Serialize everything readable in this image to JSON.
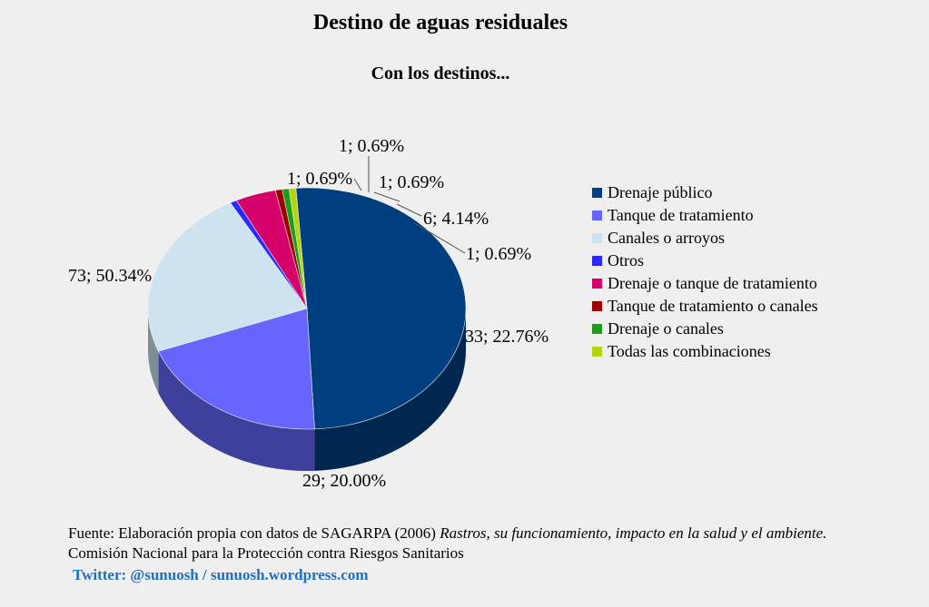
{
  "title": "Destino de aguas residuales",
  "subtitle": "Con los destinos...",
  "source": {
    "prefix": "Fuente: Elaboración propia con datos de SAGARPA (2006)",
    "italic": "Rastros, su funcionamiento, impacto en la salud y el ambiente.",
    "line2": "Comisión Nacional para la Protección contra Riesgos Sanitarios"
  },
  "credit": "Twitter: @sunuosh / sunuosh.wordpress.com",
  "chart_data": {
    "type": "pie",
    "title": "Destino de aguas residuales",
    "subtitle": "Con los destinos...",
    "legend_position": "right",
    "categories": [
      "Drenaje público",
      "Tanque de tratamiento",
      "Canales o arroyos",
      "Otros",
      "Drenaje o tanque de tratamiento",
      "Tanque de tratamiento o canales",
      "Drenaje o canales",
      "Todas las combinaciones"
    ],
    "values": [
      73,
      29,
      33,
      1,
      6,
      1,
      1,
      1
    ],
    "percentages": [
      50.34,
      20.0,
      22.76,
      0.69,
      4.14,
      0.69,
      0.69,
      0.69
    ],
    "data_labels": [
      "73; 50.34%",
      "29; 20.00%",
      "33; 22.76%",
      "1; 0.69%",
      "6; 4.14%",
      "1; 0.69%",
      "1; 0.69%",
      "1; 0.69%"
    ],
    "colors": [
      "#003f7f",
      "#6666ff",
      "#cde3f0",
      "#2a2aff",
      "#d6006a",
      "#990000",
      "#1a9e1a",
      "#b5d40f"
    ]
  }
}
